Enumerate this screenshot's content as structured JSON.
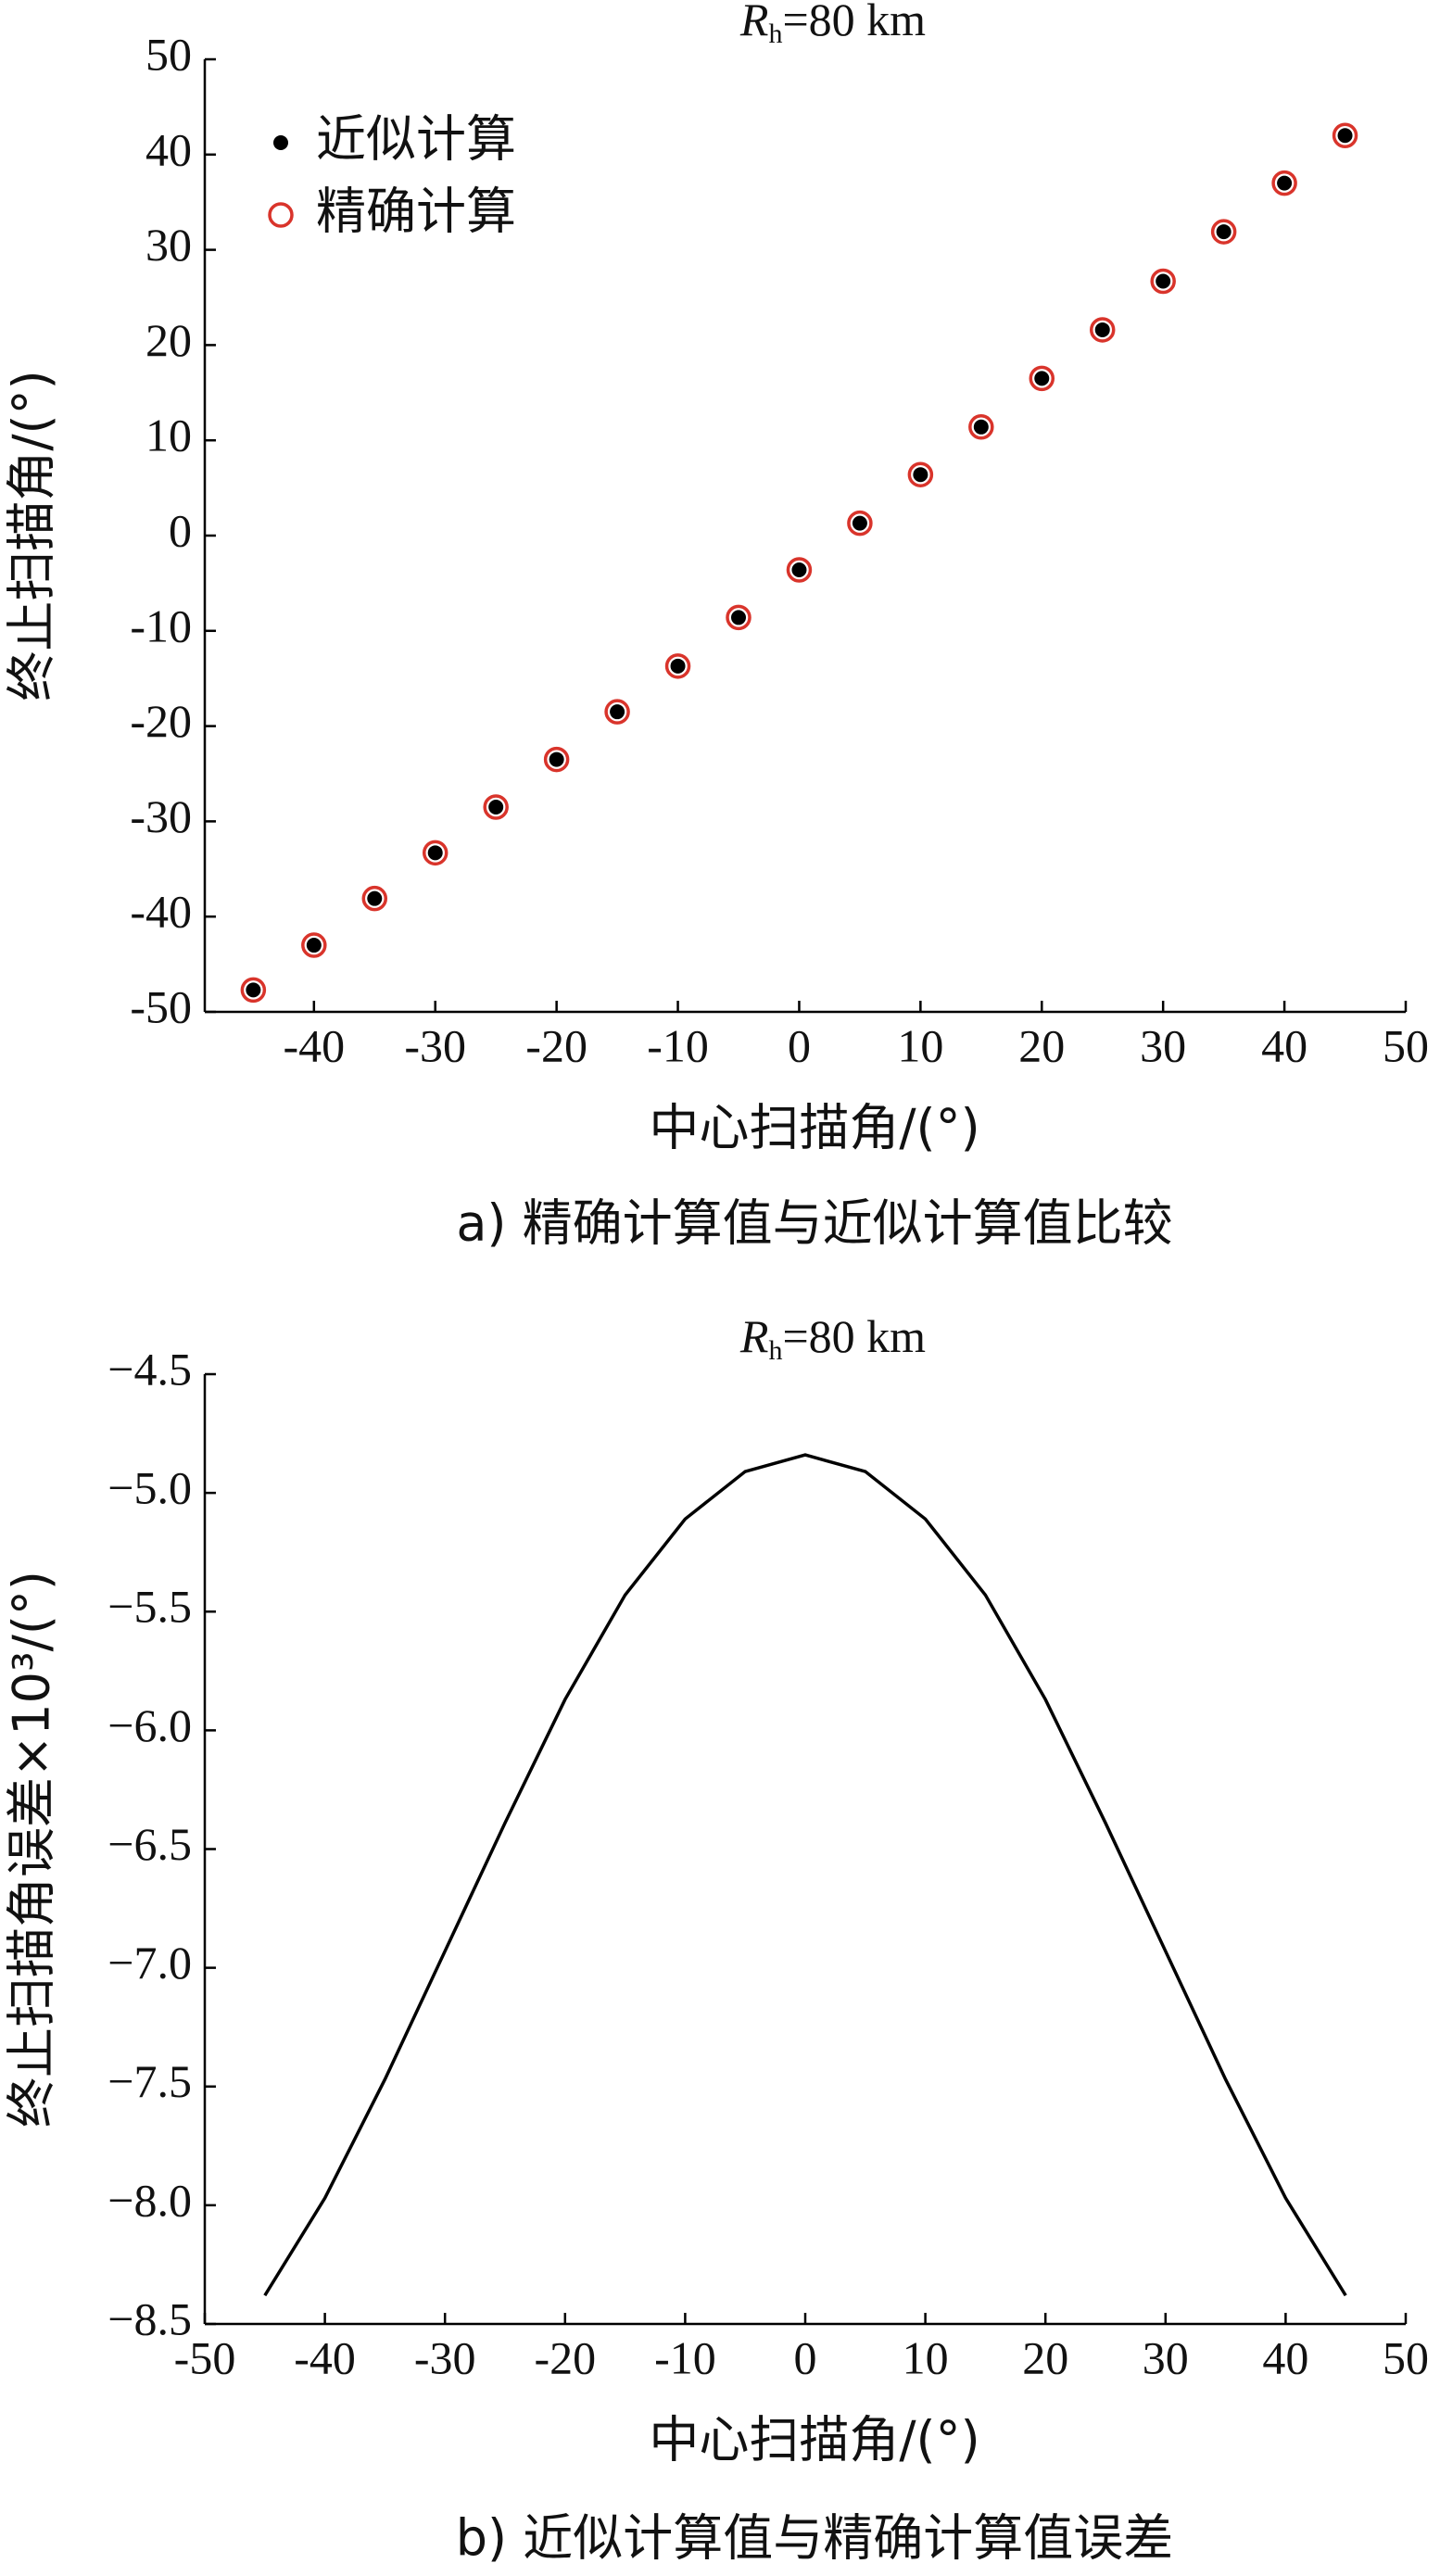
{
  "chart_data": [
    {
      "type": "scatter",
      "title_parts": [
        "R",
        "h",
        "=80 km"
      ],
      "xlabel": "中心扫描角/(°)",
      "ylabel": "终止扫描角/(°)",
      "caption": "a) 精确计算值与近似计算值比较",
      "x": [
        -45,
        -40,
        -35,
        -30,
        -25,
        -20,
        -15,
        -10,
        -5,
        0,
        5,
        10,
        15,
        20,
        25,
        30,
        35,
        40,
        45
      ],
      "series": [
        {
          "name": "近似计算",
          "color": "#000000",
          "marker": "dot",
          "values": [
            -47.7,
            -43.0,
            -38.1,
            -33.3,
            -28.5,
            -23.5,
            -18.5,
            -13.7,
            -8.6,
            -3.6,
            1.3,
            6.4,
            11.4,
            16.5,
            21.6,
            26.7,
            31.9,
            37.0,
            42.0
          ]
        },
        {
          "name": "精确计算",
          "color": "#d9342b",
          "marker": "circle",
          "values": [
            -47.7,
            -43.0,
            -38.1,
            -33.3,
            -28.5,
            -23.5,
            -18.5,
            -13.7,
            -8.6,
            -3.6,
            1.3,
            6.4,
            11.4,
            16.5,
            21.6,
            26.7,
            31.9,
            37.0,
            42.0
          ]
        }
      ],
      "xlim": [
        -49,
        50
      ],
      "xticks": [
        -40,
        -30,
        -20,
        -10,
        0,
        10,
        20,
        30,
        40,
        50
      ],
      "ylim": [
        -50,
        50
      ],
      "yticks": [
        -50,
        -40,
        -30,
        -20,
        -10,
        0,
        10,
        20,
        30,
        40,
        50
      ],
      "legend": "upper left"
    },
    {
      "type": "line",
      "title_parts": [
        "R",
        "h",
        "=80 km"
      ],
      "xlabel": "中心扫描角/(°)",
      "ylabel": "终止扫描角误差×10³/(°)",
      "caption": "b) 近似计算值与精确计算值误差",
      "x": [
        -45,
        -40,
        -35,
        -30,
        -25,
        -20,
        -15,
        -10,
        -5,
        0,
        5,
        10,
        15,
        20,
        25,
        30,
        35,
        40,
        45
      ],
      "series": [
        {
          "name": null,
          "color": "#000000",
          "values": [
            -8.38,
            -7.97,
            -7.47,
            -6.93,
            -6.39,
            -5.87,
            -5.43,
            -5.11,
            -4.91,
            -4.84,
            -4.91,
            -5.11,
            -5.43,
            -5.87,
            -6.39,
            -6.93,
            -7.47,
            -7.97,
            -8.38
          ]
        }
      ],
      "xlim": [
        -50,
        50
      ],
      "xticks": [
        -50,
        -40,
        -30,
        -20,
        -10,
        0,
        10,
        20,
        30,
        40,
        50
      ],
      "ylim": [
        -8.5,
        -4.5
      ],
      "yticks": [
        {
          "value": -8.5,
          "label": "−8.5"
        },
        {
          "value": -8.0,
          "label": "−8.0"
        },
        {
          "value": -7.5,
          "label": "−7.5"
        },
        {
          "value": -7.0,
          "label": "−7.0"
        },
        {
          "value": -6.5,
          "label": "−6.5"
        },
        {
          "value": -6.0,
          "label": "−6.0"
        },
        {
          "value": -5.5,
          "label": "−5.5"
        },
        {
          "value": -5.0,
          "label": "−5.0"
        },
        {
          "value": -4.5,
          "label": "−4.5"
        }
      ]
    }
  ]
}
